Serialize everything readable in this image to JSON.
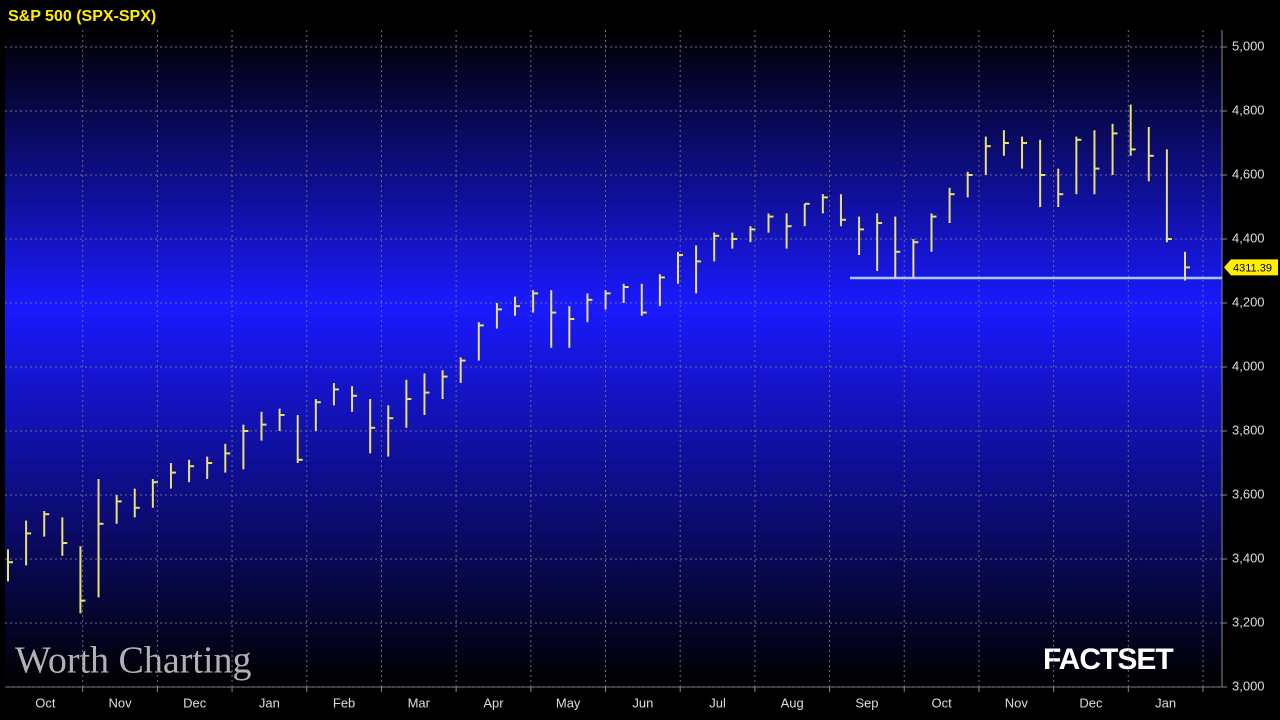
{
  "chart_data": {
    "type": "ohlc",
    "title": "S&P 500 (SPX-SPX)",
    "watermark": "Worth Charting",
    "brand": "FACTSET",
    "categories": [
      "Oct",
      "Nov",
      "Dec",
      "Jan",
      "Feb",
      "Mar",
      "Apr",
      "May",
      "Jun",
      "Jul",
      "Aug",
      "Sep",
      "Oct",
      "Nov",
      "Dec",
      "Jan"
    ],
    "color": "#e8e070",
    "high": [
      3430,
      3520,
      3550,
      3530,
      3440,
      3650,
      3600,
      3620,
      3650,
      3700,
      3710,
      3720,
      3760,
      3820,
      3860,
      3870,
      3850,
      3900,
      3950,
      3940,
      3900,
      3880,
      3960,
      3980,
      3990,
      4030,
      4140,
      4200,
      4220,
      4240,
      4240,
      4190,
      4230,
      4240,
      4260,
      4260,
      4290,
      4360,
      4380,
      4420,
      4420,
      4440,
      4480,
      4480,
      4510,
      4540,
      4540,
      4470,
      4480,
      4470,
      4400,
      4480,
      4560,
      4610,
      4720,
      4740,
      4720,
      4710,
      4620,
      4720,
      4740,
      4760,
      4820,
      4750,
      4680,
      4360
    ],
    "low": [
      3330,
      3380,
      3470,
      3410,
      3230,
      3280,
      3510,
      3530,
      3560,
      3620,
      3640,
      3650,
      3670,
      3680,
      3770,
      3800,
      3700,
      3800,
      3880,
      3860,
      3730,
      3720,
      3810,
      3850,
      3900,
      3950,
      4020,
      4120,
      4160,
      4170,
      4060,
      4060,
      4140,
      4180,
      4200,
      4160,
      4190,
      4260,
      4230,
      4330,
      4370,
      4390,
      4420,
      4370,
      4440,
      4480,
      4440,
      4350,
      4300,
      4280,
      4280,
      4360,
      4450,
      4530,
      4600,
      4660,
      4620,
      4500,
      4500,
      4540,
      4540,
      4600,
      4660,
      4580,
      4390,
      4270
    ],
    "close": [
      3390,
      3480,
      3540,
      3450,
      3270,
      3510,
      3580,
      3560,
      3640,
      3670,
      3690,
      3700,
      3730,
      3800,
      3820,
      3850,
      3710,
      3890,
      3930,
      3910,
      3810,
      3840,
      3900,
      3920,
      3970,
      4020,
      4130,
      4180,
      4190,
      4230,
      4170,
      4150,
      4210,
      4230,
      4250,
      4170,
      4280,
      4350,
      4330,
      4410,
      4400,
      4430,
      4470,
      4440,
      4510,
      4530,
      4460,
      4430,
      4450,
      4360,
      4390,
      4470,
      4540,
      4600,
      4690,
      4700,
      4700,
      4600,
      4540,
      4710,
      4620,
      4730,
      4680,
      4660,
      4400,
      4311.39
    ],
    "support_level": 4278,
    "support_color": "#a8c8ff",
    "ylim": [
      3000,
      5000
    ],
    "yticks": [
      {
        "value": 3000,
        "label": "3,000"
      },
      {
        "value": 3200,
        "label": "3,200"
      },
      {
        "value": 3400,
        "label": "3,400"
      },
      {
        "value": 3600,
        "label": "3,600"
      },
      {
        "value": 3800,
        "label": "3,800"
      },
      {
        "value": 4000,
        "label": "4,000"
      },
      {
        "value": 4200,
        "label": "4,200"
      },
      {
        "value": 4400,
        "label": "4,400"
      },
      {
        "value": 4600,
        "label": "4,600"
      },
      {
        "value": 4800,
        "label": "4,800"
      },
      {
        "value": 5000,
        "label": "5,000"
      }
    ],
    "grid": true
  }
}
